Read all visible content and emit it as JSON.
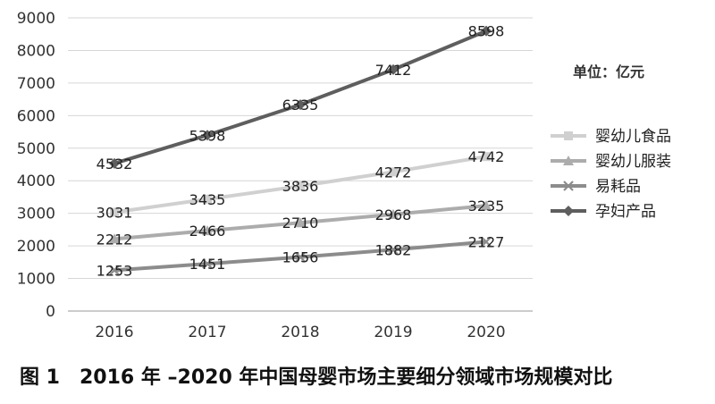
{
  "chart_data": {
    "type": "line",
    "categories": [
      "2016",
      "2017",
      "2018",
      "2019",
      "2020"
    ],
    "ylim": [
      0,
      9000
    ],
    "yticks": [
      0,
      1000,
      2000,
      3000,
      4000,
      5000,
      6000,
      7000,
      8000,
      9000
    ],
    "grid": true,
    "legend_position": "right",
    "unit_label": "单位：亿元",
    "series": [
      {
        "name": "婴幼儿食品",
        "values": [
          3031,
          3435,
          3836,
          4272,
          4742
        ],
        "color": "#d0d0d0",
        "marker": "square"
      },
      {
        "name": "婴幼儿服装",
        "values": [
          2212,
          2466,
          2710,
          2968,
          3235
        ],
        "color": "#acacac",
        "marker": "triangle"
      },
      {
        "name": "易耗品",
        "values": [
          1253,
          1451,
          1656,
          1882,
          2127
        ],
        "color": "#8c8c8c",
        "marker": "x"
      },
      {
        "name": "孕妇产品",
        "values": [
          4532,
          5398,
          6335,
          7412,
          8598
        ],
        "color": "#5e5e5e",
        "marker": "diamond"
      }
    ]
  },
  "caption": "图 1　2016 年 –2020 年中国母婴市场主要细分领域市场规模对比"
}
